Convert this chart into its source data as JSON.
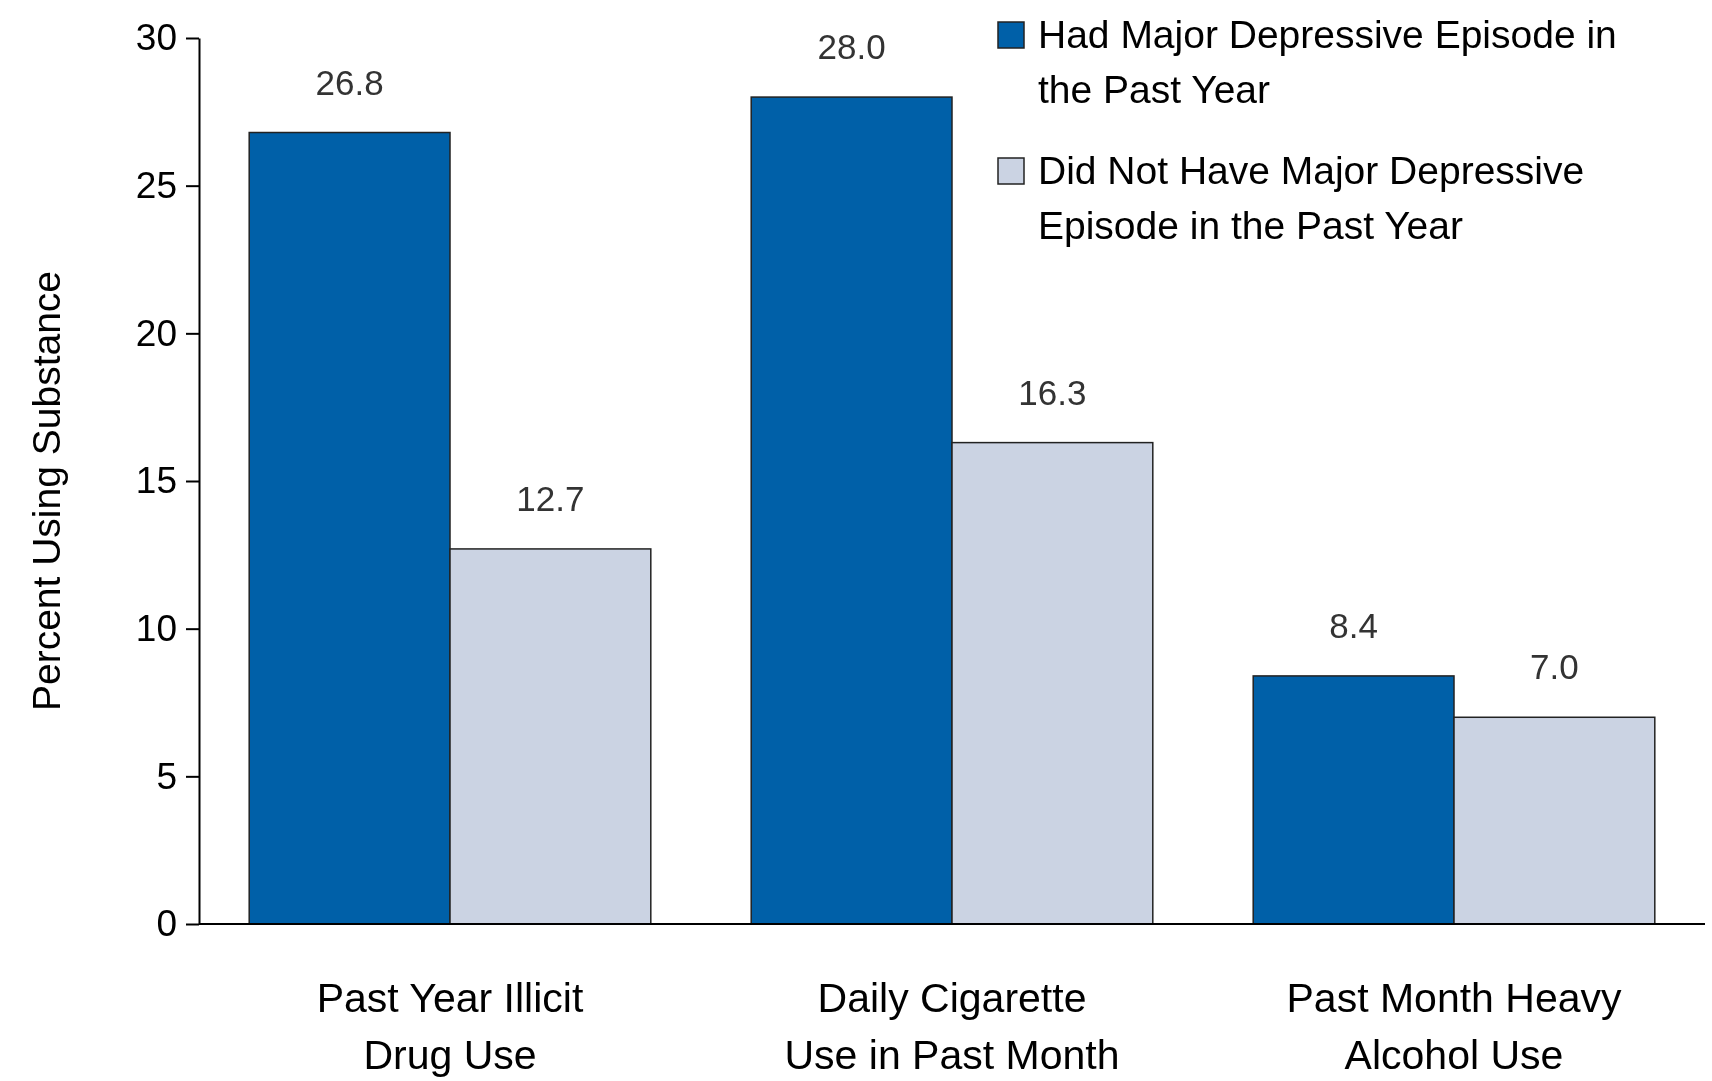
{
  "chart_data": {
    "type": "bar",
    "ylabel": "Percent Using Substance",
    "categories": [
      "Past Year Illicit Drug Use",
      "Daily Cigarette Use in Past Month",
      "Past Month Heavy Alcohol Use"
    ],
    "series": [
      {
        "name": "Had Major Depressive Episode in the Past Year",
        "color": "#0060a8",
        "values": [
          26.8,
          28.0,
          8.4
        ],
        "value_labels": [
          "26.8",
          "28.0",
          "8.4"
        ]
      },
      {
        "name": "Did Not Have Major Depressive Episode in the Past Year",
        "color": "#cbd3e3",
        "values": [
          12.7,
          16.3,
          7.0
        ],
        "value_labels": [
          "12.7",
          "16.3",
          "7.0"
        ]
      }
    ],
    "ylim": [
      0,
      30
    ],
    "yticks": [
      0,
      5,
      10,
      15,
      20,
      25,
      30
    ],
    "grid": false,
    "legend": "top right"
  }
}
